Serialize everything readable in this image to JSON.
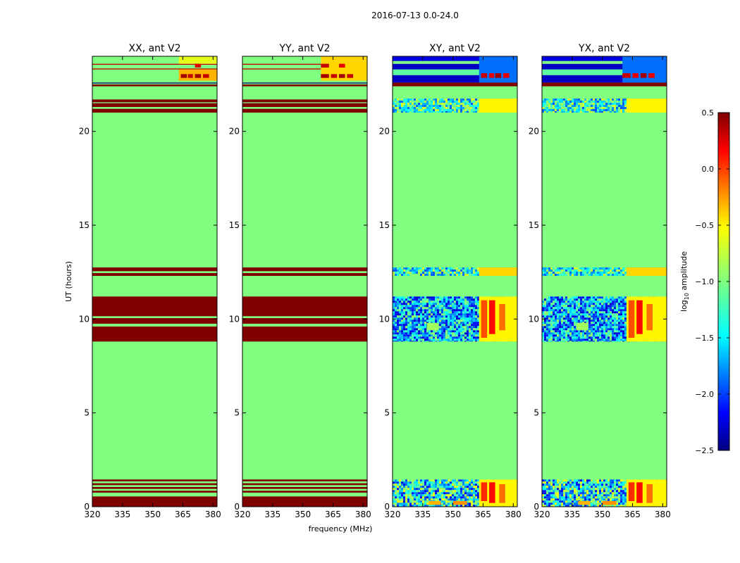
{
  "figure": {
    "suptitle": "2016-07-13 0.0-24.0",
    "ylabel": "UT (hours)",
    "xlabel": "frequency (MHz)",
    "colorbar_label": "log",
    "colorbar_label_sub": "10",
    "colorbar_label_tail": " amplitude"
  },
  "chart_data": [
    {
      "type": "heatmap",
      "title": "XX, ant V2",
      "xlim": [
        320,
        382
      ],
      "ylim": [
        0,
        24
      ],
      "xticks": [
        320,
        335,
        350,
        365,
        380
      ],
      "yticks": [
        0,
        5,
        10,
        15,
        20
      ],
      "background_value": -1.0,
      "bands": [
        {
          "y": [
            0.0,
            0.55
          ],
          "value": 0.5
        },
        {
          "y": [
            0.55,
            0.75
          ],
          "value": -1.0
        },
        {
          "y": [
            0.75,
            0.85
          ],
          "value": 0.5
        },
        {
          "y": [
            0.95,
            1.05
          ],
          "value": 0.5
        },
        {
          "y": [
            1.15,
            1.25
          ],
          "value": 0.5
        },
        {
          "y": [
            1.35,
            1.45
          ],
          "value": 0.5
        },
        {
          "y": [
            8.8,
            9.6
          ],
          "value": 0.5
        },
        {
          "y": [
            9.75,
            10.05
          ],
          "value": 0.5
        },
        {
          "y": [
            10.15,
            11.2
          ],
          "value": 0.5
        },
        {
          "y": [
            12.3,
            12.45
          ],
          "value": 0.5
        },
        {
          "y": [
            12.55,
            12.75
          ],
          "value": 0.5
        },
        {
          "y": [
            21.0,
            21.2
          ],
          "value": 0.5
        },
        {
          "y": [
            21.3,
            21.5
          ],
          "value": 0.5
        },
        {
          "y": [
            21.55,
            21.7
          ],
          "value": 0.5
        },
        {
          "y": [
            22.4,
            22.5
          ],
          "value": 0.5
        },
        {
          "y": [
            22.55,
            22.6
          ],
          "value": -2.5
        },
        {
          "y": [
            23.3,
            23.35
          ],
          "value": 0.3
        },
        {
          "y": [
            23.55,
            23.6
          ],
          "value": 0.3
        }
      ],
      "patches": [
        {
          "x": [
            363,
            382
          ],
          "y": [
            22.7,
            23.3
          ],
          "value": -0.4
        },
        {
          "x": [
            364,
            367
          ],
          "y": [
            22.85,
            23.05
          ],
          "value": 0.4
        },
        {
          "x": [
            367.5,
            370
          ],
          "y": [
            22.85,
            23.05
          ],
          "value": 0.3
        },
        {
          "x": [
            371,
            374
          ],
          "y": [
            22.85,
            23.05
          ],
          "value": 0.4
        },
        {
          "x": [
            375,
            378
          ],
          "y": [
            22.85,
            23.05
          ],
          "value": 0.3
        },
        {
          "x": [
            363,
            382
          ],
          "y": [
            23.6,
            24.0
          ],
          "value": -0.7
        },
        {
          "x": [
            371,
            374
          ],
          "y": [
            23.4,
            23.6
          ],
          "value": 0.2
        }
      ]
    },
    {
      "type": "heatmap",
      "title": "YY, ant V2",
      "xlim": [
        320,
        382
      ],
      "ylim": [
        0,
        24
      ],
      "xticks": [
        320,
        335,
        350,
        365,
        380
      ],
      "yticks": [
        0,
        5,
        10,
        15,
        20
      ],
      "background_value": -1.0,
      "bands": [
        {
          "y": [
            0.0,
            0.55
          ],
          "value": 0.5
        },
        {
          "y": [
            0.55,
            0.75
          ],
          "value": -1.0
        },
        {
          "y": [
            0.75,
            0.85
          ],
          "value": 0.5
        },
        {
          "y": [
            0.95,
            1.05
          ],
          "value": 0.5
        },
        {
          "y": [
            1.15,
            1.25
          ],
          "value": 0.5
        },
        {
          "y": [
            1.35,
            1.45
          ],
          "value": 0.5
        },
        {
          "y": [
            8.8,
            9.6
          ],
          "value": 0.5
        },
        {
          "y": [
            9.75,
            10.05
          ],
          "value": 0.5
        },
        {
          "y": [
            10.15,
            11.2
          ],
          "value": 0.5
        },
        {
          "y": [
            12.3,
            12.45
          ],
          "value": 0.5
        },
        {
          "y": [
            12.55,
            12.75
          ],
          "value": 0.5
        },
        {
          "y": [
            21.0,
            21.2
          ],
          "value": 0.5
        },
        {
          "y": [
            21.3,
            21.5
          ],
          "value": 0.5
        },
        {
          "y": [
            21.55,
            21.7
          ],
          "value": 0.5
        },
        {
          "y": [
            22.4,
            22.5
          ],
          "value": 0.5
        },
        {
          "y": [
            22.55,
            22.6
          ],
          "value": -2.5
        },
        {
          "y": [
            23.3,
            23.35
          ],
          "value": 0.3
        },
        {
          "y": [
            23.55,
            23.6
          ],
          "value": 0.3
        }
      ],
      "patches": [
        {
          "x": [
            359,
            382
          ],
          "y": [
            22.7,
            24.0
          ],
          "value": -0.5
        },
        {
          "x": [
            359,
            363
          ],
          "y": [
            22.85,
            23.05
          ],
          "value": 0.4
        },
        {
          "x": [
            364,
            367
          ],
          "y": [
            22.85,
            23.05
          ],
          "value": 0.3
        },
        {
          "x": [
            368,
            371
          ],
          "y": [
            22.85,
            23.05
          ],
          "value": 0.4
        },
        {
          "x": [
            372,
            375
          ],
          "y": [
            22.85,
            23.05
          ],
          "value": 0.3
        },
        {
          "x": [
            359,
            363
          ],
          "y": [
            23.4,
            23.6
          ],
          "value": 0.3
        },
        {
          "x": [
            368,
            371
          ],
          "y": [
            23.4,
            23.6
          ],
          "value": 0.2
        }
      ]
    },
    {
      "type": "heatmap",
      "title": "XY, ant V2",
      "xlim": [
        320,
        382
      ],
      "ylim": [
        0,
        24
      ],
      "xticks": [
        320,
        335,
        350,
        365,
        380
      ],
      "yticks": [
        0,
        5,
        10,
        15,
        20
      ],
      "background_value": -1.0,
      "bands": [
        {
          "y": [
            22.4,
            22.6
          ],
          "value": 0.5
        },
        {
          "y": [
            22.6,
            23.0
          ],
          "value": -2.3
        },
        {
          "y": [
            23.0,
            23.3
          ],
          "value": -1.1
        },
        {
          "y": [
            23.3,
            23.6
          ],
          "value": -2.3
        },
        {
          "y": [
            23.6,
            23.75
          ],
          "value": -1.0
        },
        {
          "y": [
            23.75,
            24.0
          ],
          "value": -2.2
        }
      ],
      "noise_bands": [
        {
          "y": [
            0.0,
            1.45
          ],
          "mean": -1.4,
          "spread": 0.8
        },
        {
          "y": [
            8.8,
            11.2
          ],
          "mean": -1.6,
          "spread": 0.7
        },
        {
          "y": [
            12.3,
            12.75
          ],
          "mean": -1.3,
          "spread": 0.6
        },
        {
          "y": [
            21.0,
            21.75
          ],
          "mean": -1.3,
          "spread": 0.6
        }
      ],
      "patches": [
        {
          "x": [
            363,
            382
          ],
          "y": [
            22.6,
            24.0
          ],
          "value": -1.8
        },
        {
          "x": [
            364,
            367
          ],
          "y": [
            22.85,
            23.1
          ],
          "value": 0.3
        },
        {
          "x": [
            368,
            370.5
          ],
          "y": [
            22.85,
            23.1
          ],
          "value": 0.2
        },
        {
          "x": [
            371,
            374
          ],
          "y": [
            22.85,
            23.1
          ],
          "value": 0.4
        },
        {
          "x": [
            375,
            378
          ],
          "y": [
            22.85,
            23.1
          ],
          "value": 0.2
        },
        {
          "x": [
            363,
            382
          ],
          "y": [
            8.8,
            11.2
          ],
          "value": -0.6
        },
        {
          "x": [
            364,
            367
          ],
          "y": [
            9.0,
            11.0
          ],
          "value": -0.1
        },
        {
          "x": [
            368,
            371
          ],
          "y": [
            9.2,
            11.0
          ],
          "value": 0.1
        },
        {
          "x": [
            373,
            376
          ],
          "y": [
            9.4,
            10.8
          ],
          "value": -0.2
        },
        {
          "x": [
            337,
            343
          ],
          "y": [
            9.4,
            9.8
          ],
          "value": -0.9
        },
        {
          "x": [
            363,
            382
          ],
          "y": [
            0.0,
            1.45
          ],
          "value": -0.6
        },
        {
          "x": [
            364,
            367
          ],
          "y": [
            0.3,
            1.3
          ],
          "value": 0.0
        },
        {
          "x": [
            368,
            371
          ],
          "y": [
            0.2,
            1.3
          ],
          "value": 0.1
        },
        {
          "x": [
            373,
            376
          ],
          "y": [
            0.2,
            1.2
          ],
          "value": -0.2
        },
        {
          "x": [
            338,
            344
          ],
          "y": [
            0.1,
            0.3
          ],
          "value": -0.4
        },
        {
          "x": [
            350,
            357
          ],
          "y": [
            0.1,
            0.3
          ],
          "value": -0.3
        },
        {
          "x": [
            363,
            382
          ],
          "y": [
            12.3,
            12.75
          ],
          "value": -0.5
        },
        {
          "x": [
            363,
            382
          ],
          "y": [
            21.0,
            21.75
          ],
          "value": -0.6
        }
      ]
    },
    {
      "type": "heatmap",
      "title": "YX, ant V2",
      "xlim": [
        320,
        382
      ],
      "ylim": [
        0,
        24
      ],
      "xticks": [
        320,
        335,
        350,
        365,
        380
      ],
      "yticks": [
        0,
        5,
        10,
        15,
        20
      ],
      "background_value": -1.0,
      "bands": [
        {
          "y": [
            22.4,
            22.6
          ],
          "value": 0.5
        },
        {
          "y": [
            22.6,
            23.0
          ],
          "value": -2.3
        },
        {
          "y": [
            23.0,
            23.3
          ],
          "value": -1.1
        },
        {
          "y": [
            23.3,
            23.6
          ],
          "value": -2.3
        },
        {
          "y": [
            23.6,
            23.75
          ],
          "value": -1.0
        },
        {
          "y": [
            23.75,
            24.0
          ],
          "value": -2.2
        }
      ],
      "noise_bands": [
        {
          "y": [
            0.0,
            1.45
          ],
          "mean": -1.4,
          "spread": 0.8
        },
        {
          "y": [
            8.8,
            11.2
          ],
          "mean": -1.6,
          "spread": 0.7
        },
        {
          "y": [
            12.3,
            12.75
          ],
          "mean": -1.3,
          "spread": 0.6
        },
        {
          "y": [
            21.0,
            21.75
          ],
          "mean": -1.3,
          "spread": 0.6
        }
      ],
      "patches": [
        {
          "x": [
            360,
            382
          ],
          "y": [
            22.6,
            24.0
          ],
          "value": -1.8
        },
        {
          "x": [
            360,
            364
          ],
          "y": [
            22.85,
            23.1
          ],
          "value": 0.3
        },
        {
          "x": [
            365,
            368
          ],
          "y": [
            22.85,
            23.1
          ],
          "value": 0.2
        },
        {
          "x": [
            369,
            372
          ],
          "y": [
            22.85,
            23.1
          ],
          "value": 0.4
        },
        {
          "x": [
            373,
            376
          ],
          "y": [
            22.85,
            23.1
          ],
          "value": 0.2
        },
        {
          "x": [
            362,
            382
          ],
          "y": [
            8.8,
            11.2
          ],
          "value": -0.6
        },
        {
          "x": [
            363,
            366
          ],
          "y": [
            9.0,
            11.0
          ],
          "value": -0.1
        },
        {
          "x": [
            367,
            370
          ],
          "y": [
            9.2,
            11.0
          ],
          "value": 0.1
        },
        {
          "x": [
            372,
            375
          ],
          "y": [
            9.4,
            10.8
          ],
          "value": -0.2
        },
        {
          "x": [
            337,
            343
          ],
          "y": [
            9.4,
            9.8
          ],
          "value": -0.9
        },
        {
          "x": [
            362,
            382
          ],
          "y": [
            0.0,
            1.45
          ],
          "value": -0.6
        },
        {
          "x": [
            363,
            366
          ],
          "y": [
            0.3,
            1.3
          ],
          "value": 0.0
        },
        {
          "x": [
            367,
            370
          ],
          "y": [
            0.2,
            1.3
          ],
          "value": 0.1
        },
        {
          "x": [
            372,
            375
          ],
          "y": [
            0.2,
            1.2
          ],
          "value": -0.2
        },
        {
          "x": [
            338,
            344
          ],
          "y": [
            0.1,
            0.3
          ],
          "value": -0.4
        },
        {
          "x": [
            350,
            357
          ],
          "y": [
            0.1,
            0.3
          ],
          "value": -0.3
        },
        {
          "x": [
            362,
            382
          ],
          "y": [
            12.3,
            12.75
          ],
          "value": -0.5
        },
        {
          "x": [
            362,
            382
          ],
          "y": [
            21.0,
            21.75
          ],
          "value": -0.6
        }
      ]
    }
  ],
  "colorbar": {
    "range": [
      -2.5,
      0.5
    ],
    "ticks": [
      0.5,
      0.0,
      -0.5,
      -1.0,
      -1.5,
      -2.0,
      -2.5
    ],
    "tick_labels": [
      "0.5",
      "0.0",
      "−0.5",
      "−1.0",
      "−1.5",
      "−2.0",
      "−2.5"
    ],
    "colormap": "jet"
  }
}
